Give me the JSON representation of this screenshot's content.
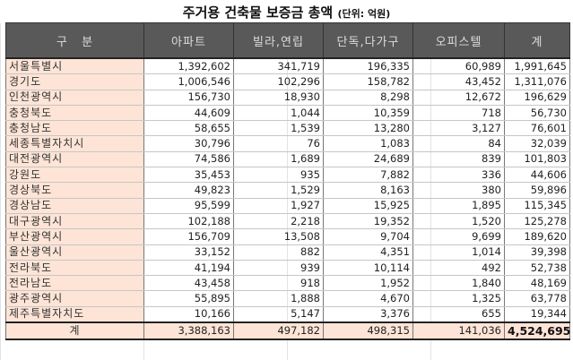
{
  "title": {
    "main": "주거용 건축물 보증금 총액",
    "unit": "(단위: 억원)"
  },
  "columns": [
    "구   분",
    "아파트",
    "빌라,연립",
    "단독,다가구",
    "오피스텔",
    "계"
  ],
  "rows": [
    {
      "region": "서울특별시",
      "apt": "1,392,602",
      "villa": "341,719",
      "house": "196,335",
      "officetel": "60,989",
      "total": "1,991,645"
    },
    {
      "region": "경기도",
      "apt": "1,006,546",
      "villa": "102,296",
      "house": "158,782",
      "officetel": "43,452",
      "total": "1,311,076"
    },
    {
      "region": "인천광역시",
      "apt": "156,730",
      "villa": "18,930",
      "house": "8,298",
      "officetel": "12,672",
      "total": "196,629"
    },
    {
      "region": "충청북도",
      "apt": "44,609",
      "villa": "1,044",
      "house": "10,359",
      "officetel": "718",
      "total": "56,730"
    },
    {
      "region": "충청남도",
      "apt": "58,655",
      "villa": "1,539",
      "house": "13,280",
      "officetel": "3,127",
      "total": "76,601"
    },
    {
      "region": "세종특별자치시",
      "apt": "30,796",
      "villa": "76",
      "house": "1,083",
      "officetel": "84",
      "total": "32,039"
    },
    {
      "region": "대전광역시",
      "apt": "74,586",
      "villa": "1,689",
      "house": "24,689",
      "officetel": "839",
      "total": "101,803"
    },
    {
      "region": "강원도",
      "apt": "35,453",
      "villa": "935",
      "house": "7,882",
      "officetel": "336",
      "total": "44,606"
    },
    {
      "region": "경상북도",
      "apt": "49,823",
      "villa": "1,529",
      "house": "8,163",
      "officetel": "380",
      "total": "59,896"
    },
    {
      "region": "경상남도",
      "apt": "95,599",
      "villa": "1,927",
      "house": "15,925",
      "officetel": "1,895",
      "total": "115,345"
    },
    {
      "region": "대구광역시",
      "apt": "102,188",
      "villa": "2,218",
      "house": "19,352",
      "officetel": "1,520",
      "total": "125,278"
    },
    {
      "region": "부산광역시",
      "apt": "156,709",
      "villa": "13,508",
      "house": "9,704",
      "officetel": "9,699",
      "total": "189,620"
    },
    {
      "region": "울산광역시",
      "apt": "33,152",
      "villa": "882",
      "house": "4,351",
      "officetel": "1,014",
      "total": "39,398"
    },
    {
      "region": "전라북도",
      "apt": "41,194",
      "villa": "939",
      "house": "10,114",
      "officetel": "492",
      "total": "52,738"
    },
    {
      "region": "전라남도",
      "apt": "43,458",
      "villa": "918",
      "house": "1,952",
      "officetel": "1,840",
      "total": "48,169"
    },
    {
      "region": "광주광역시",
      "apt": "55,895",
      "villa": "1,888",
      "house": "4,670",
      "officetel": "1,325",
      "total": "63,778"
    },
    {
      "region": "제주특별자치도",
      "apt": "10,166",
      "villa": "5,147",
      "house": "3,376",
      "officetel": "655",
      "total": "19,344"
    }
  ],
  "total_row": {
    "region": "계",
    "apt": "3,388,163",
    "villa": "497,182",
    "house": "498,315",
    "officetel": "141,036",
    "total": "4,524,695"
  },
  "colors": {
    "header_bg": "#595959",
    "header_text": "#dcdcdc",
    "label_bg": "#fde4d6"
  }
}
